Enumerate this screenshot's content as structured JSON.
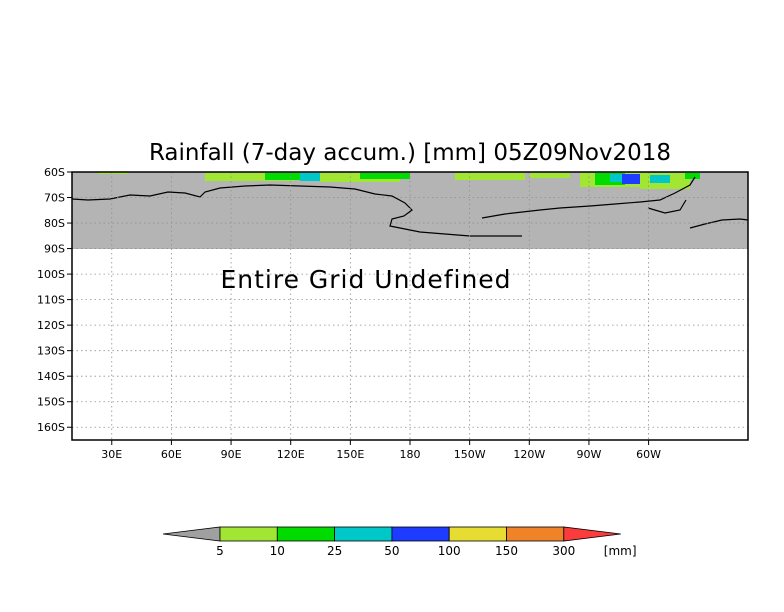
{
  "chart_data": {
    "type": "heatmap",
    "title": "Rainfall (7-day accum.) [mm] 05Z09Nov2018",
    "message": "Entire Grid Undefined",
    "map": {
      "lon_range": [
        10,
        350
      ],
      "lat_range": [
        -165,
        -60
      ],
      "undefined_lat_range": [
        -90,
        -60
      ],
      "land_color": "#b4b4b4",
      "coastline_color": "#000000",
      "grid": true
    },
    "x_ticks": [
      "30E",
      "60E",
      "90E",
      "120E",
      "150E",
      "180",
      "150W",
      "120W",
      "90W",
      "60W"
    ],
    "x_tick_values": [
      30,
      60,
      90,
      120,
      150,
      180,
      210,
      240,
      270,
      300
    ],
    "y_ticks": [
      "60S",
      "70S",
      "80S",
      "90S",
      "100S",
      "110S",
      "120S",
      "130S",
      "140S",
      "150S",
      "160S"
    ],
    "y_tick_values": [
      -60,
      -70,
      -80,
      -90,
      -100,
      -110,
      -120,
      -130,
      -140,
      -150,
      -160
    ],
    "colorbar": {
      "levels": [
        "5",
        "10",
        "25",
        "50",
        "100",
        "150",
        "300"
      ],
      "unit": "[mm]",
      "colors": [
        "#a0e632",
        "#00dc00",
        "#00c8c8",
        "#1e3cff",
        "#e6dc32",
        "#f08228",
        "#fa3c3c"
      ],
      "under_color": "#a0a0a0"
    }
  }
}
